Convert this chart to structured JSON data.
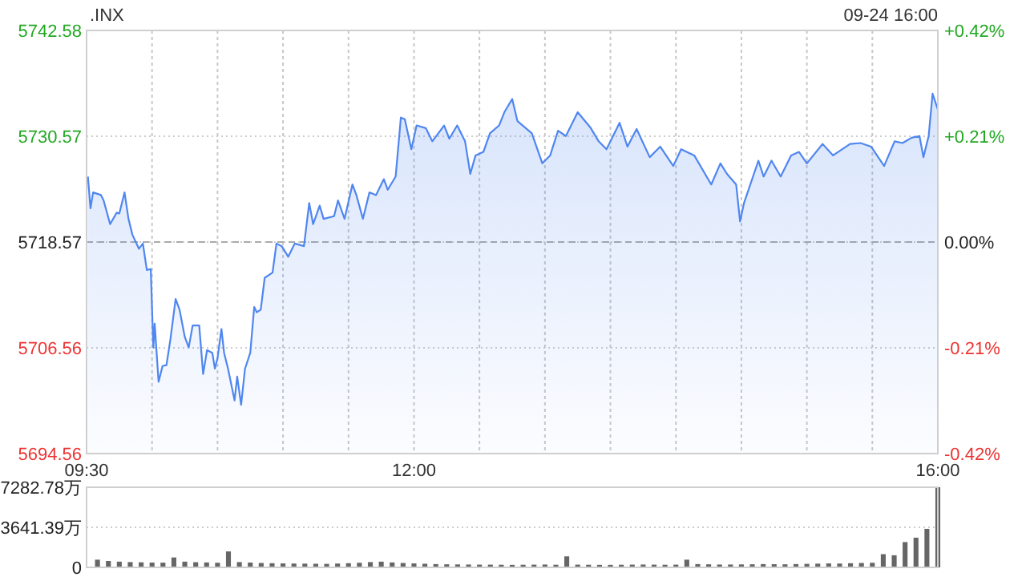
{
  "chart_data": [
    {
      "type": "area",
      "title": ".INX",
      "annotations": [
        "09-24 16:00"
      ],
      "x": [
        9.51,
        9.53,
        9.55,
        9.61,
        9.63,
        9.68,
        9.73,
        9.75,
        9.79,
        9.82,
        9.85,
        9.9,
        9.93,
        9.96,
        9.99,
        10.01,
        10.02,
        10.05,
        10.08,
        10.11,
        10.14,
        10.18,
        10.21,
        10.25,
        10.28,
        10.31,
        10.36,
        10.39,
        10.42,
        10.46,
        10.48,
        10.5,
        10.53,
        10.55,
        10.58,
        10.63,
        10.65,
        10.68,
        10.71,
        10.75,
        10.78,
        10.8,
        10.83,
        10.86,
        10.92,
        10.95,
        10.99,
        11.04,
        11.09,
        11.16,
        11.2,
        11.23,
        11.28,
        11.31,
        11.39,
        11.42,
        11.47,
        11.53,
        11.56,
        11.61,
        11.66,
        11.71,
        11.77,
        11.8,
        11.86,
        11.9,
        11.93,
        11.98,
        12.02,
        12.09,
        12.14,
        12.23,
        12.27,
        12.33,
        12.39,
        12.43,
        12.47,
        12.53,
        12.58,
        12.65,
        12.69,
        12.75,
        12.79,
        12.83,
        12.9,
        12.98,
        13.04,
        13.1,
        13.16,
        13.25,
        13.35,
        13.41,
        13.47,
        13.57,
        13.63,
        13.7,
        13.8,
        13.88,
        13.98,
        14.04,
        14.14,
        14.27,
        14.34,
        14.39,
        14.46,
        14.49,
        14.52,
        14.63,
        14.67,
        14.73,
        14.8,
        14.88,
        14.94,
        15.0,
        15.12,
        15.2,
        15.33,
        15.41,
        15.49,
        15.59,
        15.67,
        15.73,
        15.8,
        15.86,
        15.89,
        15.93,
        15.96,
        16.0
      ],
      "xlim": [
        9.5,
        16
      ],
      "xticks": [
        {
          "value": 9.5,
          "label": "09:30"
        },
        {
          "value": 10,
          "label": null
        },
        {
          "value": 10.5,
          "label": null
        },
        {
          "value": 11,
          "label": null
        },
        {
          "value": 11.5,
          "label": null
        },
        {
          "value": 12,
          "label": "12:00"
        },
        {
          "value": 12.5,
          "label": null
        },
        {
          "value": 13,
          "label": null
        },
        {
          "value": 13.5,
          "label": null
        },
        {
          "value": 14,
          "label": null
        },
        {
          "value": 14.5,
          "label": null
        },
        {
          "value": 15,
          "label": null
        },
        {
          "value": 15.5,
          "label": null
        },
        {
          "value": 16,
          "label": "16:00"
        }
      ],
      "ylim": [
        5694.56,
        5742.58
      ],
      "yticks": [
        5694.56,
        5706.56,
        5718.57,
        5730.57,
        5742.58
      ],
      "y2lim": [
        -0.42,
        0.42
      ],
      "y2ticks": [
        {
          "value": -0.42,
          "label": "-0.42%"
        },
        {
          "value": -0.21,
          "label": "-0.21%"
        },
        {
          "value": 0,
          "label": "0.00%"
        },
        {
          "value": 0.21,
          "label": "+0.21%"
        },
        {
          "value": 0.42,
          "label": "+0.42%"
        }
      ],
      "grid": true,
      "ref_lines": [
        {
          "axis": "y",
          "value": 5718.57,
          "line_style": "dashed",
          "color": "#aaaaaa"
        }
      ],
      "series": [
        {
          "color": "#4f86f0",
          "values": [
            5726.0,
            5722.4,
            5724.2,
            5723.9,
            5723.3,
            5720.6,
            5721.9,
            5721.8,
            5724.2,
            5721.2,
            5719.4,
            5717.8,
            5718.4,
            5715.4,
            5715.5,
            5706.6,
            5709.3,
            5702.7,
            5704.5,
            5704.6,
            5707.5,
            5712.1,
            5710.9,
            5707.8,
            5706.6,
            5709.1,
            5709.1,
            5703.6,
            5706.3,
            5706.0,
            5704.2,
            5705.4,
            5708.7,
            5706.0,
            5704.2,
            5700.6,
            5703.3,
            5700.1,
            5704.2,
            5706.0,
            5711.2,
            5710.6,
            5710.9,
            5714.5,
            5715.1,
            5718.4,
            5718.1,
            5716.9,
            5718.4,
            5718.1,
            5723.0,
            5720.6,
            5722.7,
            5721.2,
            5721.5,
            5723.3,
            5721.2,
            5725.1,
            5723.9,
            5721.2,
            5724.2,
            5723.9,
            5725.7,
            5724.5,
            5726.0,
            5732.7,
            5732.5,
            5729.1,
            5731.8,
            5731.5,
            5730.0,
            5731.8,
            5730.3,
            5731.8,
            5730.0,
            5726.3,
            5728.4,
            5728.8,
            5730.9,
            5731.8,
            5733.3,
            5734.8,
            5732.3,
            5731.8,
            5730.9,
            5727.5,
            5728.4,
            5731.2,
            5730.6,
            5733.3,
            5731.5,
            5730.0,
            5729.1,
            5732.1,
            5729.4,
            5731.4,
            5728.2,
            5729.4,
            5727.2,
            5729.1,
            5728.4,
            5725.1,
            5727.5,
            5726.3,
            5725.1,
            5720.9,
            5723.0,
            5727.8,
            5726.0,
            5727.8,
            5726.0,
            5728.4,
            5728.8,
            5727.5,
            5729.7,
            5728.4,
            5729.7,
            5729.8,
            5729.4,
            5727.2,
            5730.0,
            5729.8,
            5730.4,
            5730.6,
            5728.2,
            5730.6,
            5735.4,
            5733.6
          ]
        }
      ]
    },
    {
      "type": "bar",
      "tick_labels": "y",
      "x": [
        9.5833,
        9.6667,
        9.75,
        9.8333,
        9.9167,
        10.0,
        10.0833,
        10.1667,
        10.25,
        10.3333,
        10.4167,
        10.5,
        10.5833,
        10.6667,
        10.75,
        10.8333,
        10.9167,
        11.0,
        11.0833,
        11.1667,
        11.25,
        11.3333,
        11.4167,
        11.5,
        11.5833,
        11.6667,
        11.75,
        11.8333,
        11.9167,
        12.0,
        12.0833,
        12.1667,
        12.25,
        12.3333,
        12.4167,
        12.5,
        12.5833,
        12.6667,
        12.75,
        12.8333,
        12.9167,
        13.0,
        13.0833,
        13.1667,
        13.25,
        13.3333,
        13.4167,
        13.5,
        13.5833,
        13.6667,
        13.75,
        13.8333,
        13.9167,
        14.0,
        14.0833,
        14.1667,
        14.25,
        14.3333,
        14.4167,
        14.5,
        14.5833,
        14.6667,
        14.75,
        14.8333,
        14.9167,
        15.0,
        15.0833,
        15.1667,
        15.25,
        15.3333,
        15.4167,
        15.5,
        15.5833,
        15.6667,
        15.75,
        15.8333,
        15.9167,
        16.0
      ],
      "xlim": [
        9.5,
        16
      ],
      "ylim": [
        0,
        7282.78
      ],
      "yticks": [
        0,
        {
          "value": 3641.39,
          "label": "3641.39万"
        },
        {
          "value": 7282.78,
          "label": "7282.78万"
        }
      ],
      "grid": "y",
      "color": "#666666",
      "values": [
        700,
        580,
        520,
        480,
        460,
        440,
        430,
        900,
        520,
        470,
        450,
        420,
        1450,
        480,
        440,
        400,
        380,
        360,
        350,
        340,
        330,
        320,
        350,
        380,
        420,
        480,
        520,
        450,
        400,
        360,
        330,
        300,
        280,
        270,
        260,
        250,
        250,
        240,
        230,
        240,
        250,
        260,
        240,
        1000,
        250,
        240,
        230,
        230,
        240,
        250,
        260,
        250,
        240,
        250,
        700,
        300,
        280,
        260,
        260,
        270,
        280,
        300,
        290,
        280,
        300,
        320,
        340,
        360,
        350,
        380,
        400,
        420,
        1200,
        1100,
        2300,
        2700,
        3500,
        7282.78
      ]
    }
  ]
}
